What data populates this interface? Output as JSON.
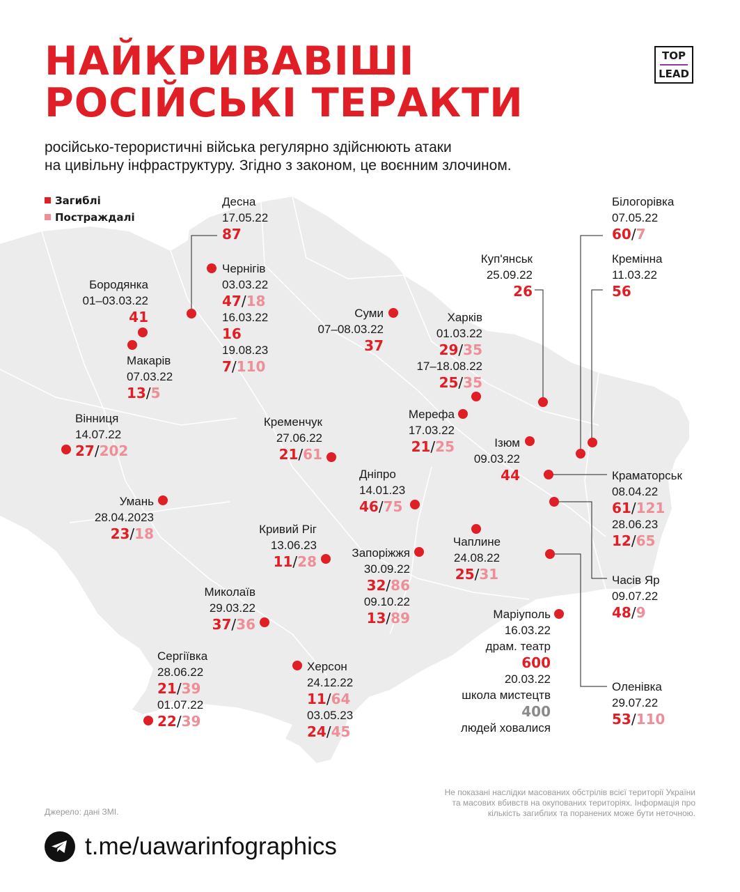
{
  "title": {
    "line1": "НАЙКРИВАВІШІ",
    "line2": "РОСІЙСЬКІ ТЕРАКТИ"
  },
  "logo": {
    "line1": "TOP",
    "line2": "LEAD"
  },
  "subtitle": {
    "line1": "російсько-терористичні війська регулярно здійснюють атаки",
    "line2": "на цивільну інфраструктуру. Згідно з законом, це воєнним злочином."
  },
  "legend": {
    "dead": "Загиблі",
    "injured": "Постраждалі"
  },
  "colors": {
    "dead": "#e01e25",
    "injured": "#ee8e96",
    "map_fill": "#ececec",
    "border": "#ffffff"
  },
  "places": {
    "desna": {
      "name": "Десна",
      "date1": "17.05.22",
      "d1": "87"
    },
    "chernihiv": {
      "name": "Чернігів",
      "date1": "03.03.22",
      "d1": "47",
      "i1": "18",
      "date2": "16.03.22",
      "d2": "16",
      "date3": "19.08.23",
      "d3": "7",
      "i3": "110"
    },
    "borodianka": {
      "name": "Бородянка",
      "date1": "01–03.03.22",
      "d1": "41"
    },
    "makariv": {
      "name": "Макарів",
      "date1": "07.03.22",
      "d1": "13",
      "i1": "5"
    },
    "vinnytsia": {
      "name": "Вінниця",
      "date1": "14.07.22",
      "d1": "27",
      "i1": "202"
    },
    "uman": {
      "name": "Умань",
      "date1": "28.04.2023",
      "d1": "23",
      "i1": "18"
    },
    "kremenchuk": {
      "name": "Кременчук",
      "date1": "27.06.22",
      "d1": "21",
      "i1": "61"
    },
    "sumy": {
      "name": "Суми",
      "date1": "07–08.03.22",
      "d1": "37"
    },
    "kupiansk": {
      "name": "Куп'янськ",
      "date1": "25.09.22",
      "d1": "26"
    },
    "kharkiv": {
      "name": "Харків",
      "date1": "01.03.22",
      "d1": "29",
      "i1": "35",
      "date2": "17–18.08.22",
      "d2": "25",
      "i2": "35"
    },
    "merefa": {
      "name": "Мерефа",
      "date1": "17.03.22",
      "d1": "21",
      "i1": "25"
    },
    "izium": {
      "name": "Ізюм",
      "date1": "09.03.22",
      "d1": "44"
    },
    "bilohorivka": {
      "name": "Білогорівка",
      "date1": "07.05.22",
      "d1": "60",
      "i1": "7"
    },
    "kreminna": {
      "name": "Кремінна",
      "date1": "11.03.22",
      "d1": "56"
    },
    "kramatorsk": {
      "name": "Краматорськ",
      "date1": "08.04.22",
      "d1": "61",
      "i1": "121",
      "date2": "28.06.23",
      "d2": "12",
      "i2": "65"
    },
    "dnipro": {
      "name": "Дніпро",
      "date1": "14.01.23",
      "d1": "46",
      "i1": "75"
    },
    "kryvyi_rih": {
      "name": "Кривий Ріг",
      "date1": "13.06.23",
      "d1": "11",
      "i1": "28"
    },
    "zaporizhzhia": {
      "name": "Запоріжжя",
      "date1": "30.09.22",
      "d1": "32",
      "i1": "86",
      "date2": "09.10.22",
      "d2": "13",
      "i2": "89"
    },
    "chapline": {
      "name": "Чаплине",
      "date1": "24.08.22",
      "d1": "25",
      "i1": "31"
    },
    "chasiv_yar": {
      "name": "Часів Яр",
      "date1": "09.07.22",
      "d1": "48",
      "i1": "9"
    },
    "mykolaiv": {
      "name": "Миколаїв",
      "date1": "29.03.22",
      "d1": "37",
      "i1": "36"
    },
    "mariupol": {
      "name": "Маріуполь",
      "date1": "16.03.22",
      "note1": "драм. театр",
      "d1": "600",
      "date2": "20.03.22",
      "note2": "школа мистецтв",
      "hid": "400",
      "note3": "людей ховалися"
    },
    "serhiivka": {
      "name": "Сергіївка",
      "date1": "28.06.22",
      "d1": "21",
      "i1": "39",
      "date2": "01.07.22",
      "d2": "22",
      "i2": "39"
    },
    "kherson": {
      "name": "Херсон",
      "date1": "24.12.22",
      "d1": "11",
      "i1": "64",
      "date2": "03.05.23",
      "d2": "24",
      "i2": "45"
    },
    "olenivka": {
      "name": "Оленівка",
      "date1": "29.07.22",
      "d1": "53",
      "i1": "110"
    }
  },
  "footer": {
    "source": "Джерело: дані ЗМІ.",
    "note_line1": "Не показані наслідки масованих обстрілів всієї території України",
    "note_line2": "та масових вбивств на окупованих територіях. Інформація про",
    "note_line3": "кількість загиблих та поранених може бути неточною.",
    "link": "t.me/uawarinfographics",
    "telegram_icon": "telegram-icon"
  }
}
